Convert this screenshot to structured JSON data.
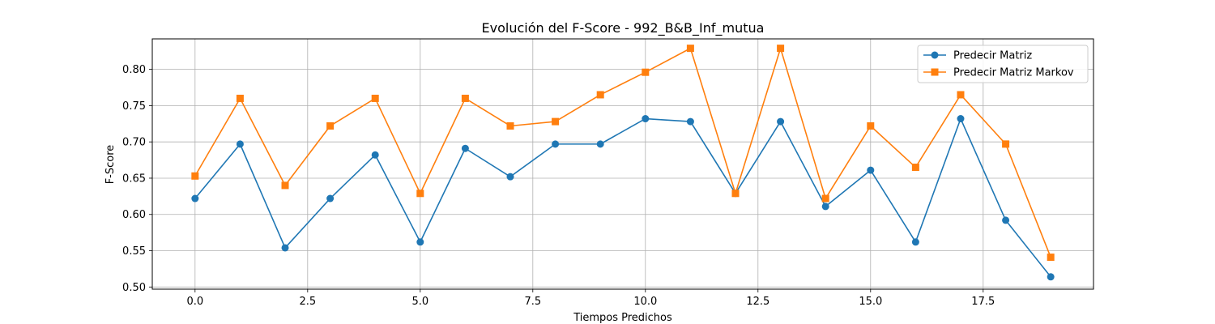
{
  "chart_data": {
    "type": "line",
    "title": "Evolución del F-Score - 992_B&B_Inf_mutua",
    "xlabel": "Tiempos Predichos",
    "ylabel": "F-Score",
    "xlim": [
      -0.95,
      19.95
    ],
    "ylim": [
      0.497,
      0.842
    ],
    "xticks": [
      0.0,
      2.5,
      5.0,
      7.5,
      10.0,
      12.5,
      15.0,
      17.5
    ],
    "xtick_labels": [
      "0.0",
      "2.5",
      "5.0",
      "7.5",
      "10.0",
      "12.5",
      "15.0",
      "17.5"
    ],
    "yticks": [
      0.5,
      0.55,
      0.6,
      0.65,
      0.7,
      0.75,
      0.8
    ],
    "ytick_labels": [
      "0.50",
      "0.55",
      "0.60",
      "0.65",
      "0.70",
      "0.75",
      "0.80"
    ],
    "grid": true,
    "legend_position": "top-right",
    "x": [
      0,
      1,
      2,
      3,
      4,
      5,
      6,
      7,
      8,
      9,
      10,
      11,
      12,
      13,
      14,
      15,
      16,
      17,
      18,
      19
    ],
    "series": [
      {
        "name": "Predecir Matriz",
        "color": "#1f77b4",
        "marker": "circle",
        "values": [
          0.622,
          0.697,
          0.554,
          0.622,
          0.682,
          0.562,
          0.691,
          0.652,
          0.697,
          0.697,
          0.732,
          0.728,
          0.629,
          0.728,
          0.611,
          0.661,
          0.562,
          0.732,
          0.592,
          0.514
        ]
      },
      {
        "name": "Predecir Matriz Markov",
        "color": "#ff7f0e",
        "marker": "square",
        "values": [
          0.653,
          0.76,
          0.64,
          0.722,
          0.76,
          0.629,
          0.76,
          0.722,
          0.728,
          0.765,
          0.796,
          0.829,
          0.629,
          0.829,
          0.622,
          0.722,
          0.665,
          0.765,
          0.697,
          0.541
        ]
      }
    ]
  }
}
